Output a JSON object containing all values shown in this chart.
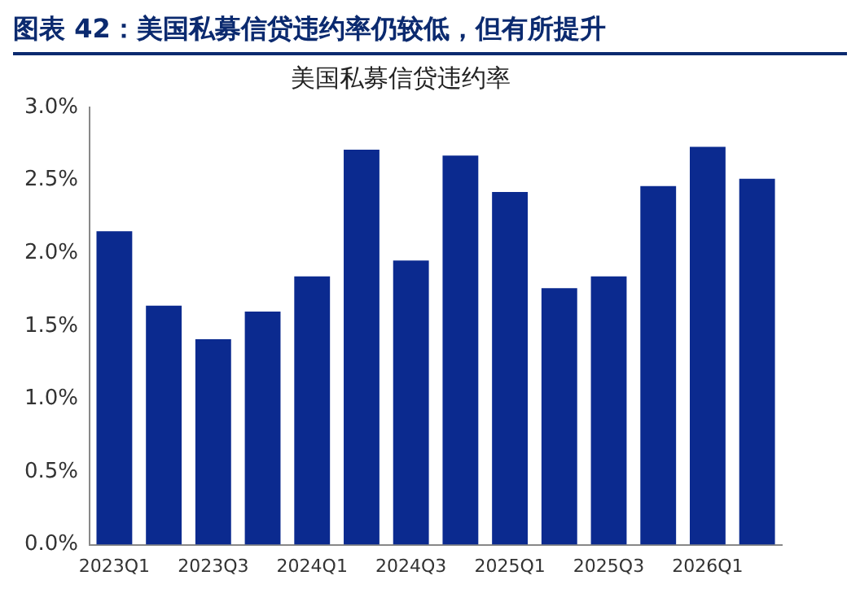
{
  "chart_data": {
    "type": "bar",
    "title": "美国私募信贷违约率",
    "subtitle": "图表 42：美国私募信贷违约率仍较低，但有所提升",
    "categories": [
      "2023Q1",
      null,
      "2023Q3",
      null,
      "2024Q1",
      null,
      "2024Q3",
      null,
      "2025Q1",
      null,
      "2025Q3",
      null,
      "2026Q1",
      null
    ],
    "values": [
      2.15,
      1.64,
      1.41,
      1.6,
      1.84,
      2.71,
      1.95,
      2.67,
      2.42,
      1.76,
      1.84,
      2.46,
      2.73,
      2.51
    ],
    "color": "#0b2a8f",
    "ylim": [
      0,
      3
    ],
    "yticks": [
      {
        "value": 0,
        "label": "0.0%"
      },
      {
        "value": 0.5,
        "label": "0.5%"
      },
      {
        "value": 1,
        "label": "1.0%"
      },
      {
        "value": 1.5,
        "label": "1.5%"
      },
      {
        "value": 2,
        "label": "2.0%"
      },
      {
        "value": 2.5,
        "label": "2.5%"
      },
      {
        "value": 3,
        "label": "3.0%"
      }
    ],
    "grid": false,
    "legend": false
  }
}
